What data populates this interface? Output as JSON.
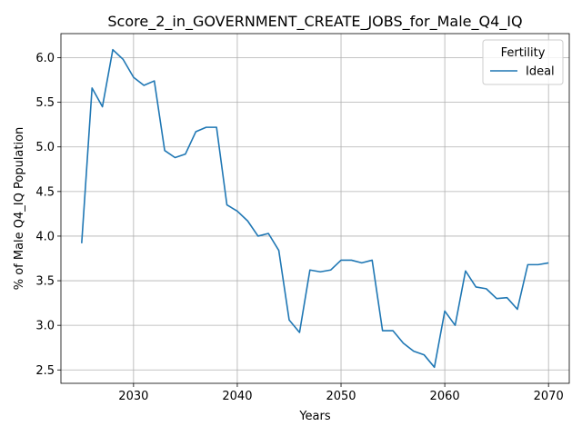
{
  "chart_data": {
    "type": "line",
    "title": "Score_2_in_GOVERNMENT_CREATE_JOBS_for_Male_Q4_IQ",
    "xlabel": "Years",
    "ylabel": "% of Male Q4_IQ Population",
    "xlim": [
      2023,
      2072
    ],
    "ylim": [
      2.35,
      6.27
    ],
    "xticks": [
      2030,
      2040,
      2050,
      2060,
      2070
    ],
    "yticks": [
      2.5,
      3.0,
      3.5,
      4.0,
      4.5,
      5.0,
      5.5,
      6.0
    ],
    "ytick_labels": [
      "2.5",
      "3.0",
      "3.5",
      "4.0",
      "4.5",
      "5.0",
      "5.5",
      "6.0"
    ],
    "grid": true,
    "legend": {
      "title": "Fertility",
      "position": "top-right"
    },
    "x": [
      2025,
      2026,
      2027,
      2028,
      2029,
      2030,
      2031,
      2032,
      2033,
      2034,
      2035,
      2036,
      2037,
      2038,
      2039,
      2040,
      2041,
      2042,
      2043,
      2044,
      2045,
      2046,
      2047,
      2048,
      2049,
      2050,
      2051,
      2052,
      2053,
      2054,
      2055,
      2056,
      2057,
      2058,
      2059,
      2060,
      2061,
      2062,
      2063,
      2064,
      2065,
      2066,
      2067,
      2068,
      2069,
      2070
    ],
    "series": [
      {
        "name": "Ideal",
        "color": "#1f77b4",
        "values": [
          3.92,
          5.66,
          5.45,
          6.09,
          5.98,
          5.78,
          5.69,
          5.74,
          4.96,
          4.88,
          4.92,
          5.17,
          5.22,
          5.22,
          4.35,
          4.28,
          4.17,
          4.0,
          4.03,
          3.84,
          3.06,
          2.92,
          3.62,
          3.6,
          3.62,
          3.73,
          3.73,
          3.7,
          3.73,
          2.94,
          2.94,
          2.8,
          2.71,
          2.67,
          2.53,
          3.16,
          3.0,
          3.61,
          3.43,
          3.41,
          3.3,
          3.31,
          3.18,
          3.68,
          3.68,
          3.7
        ]
      }
    ]
  }
}
